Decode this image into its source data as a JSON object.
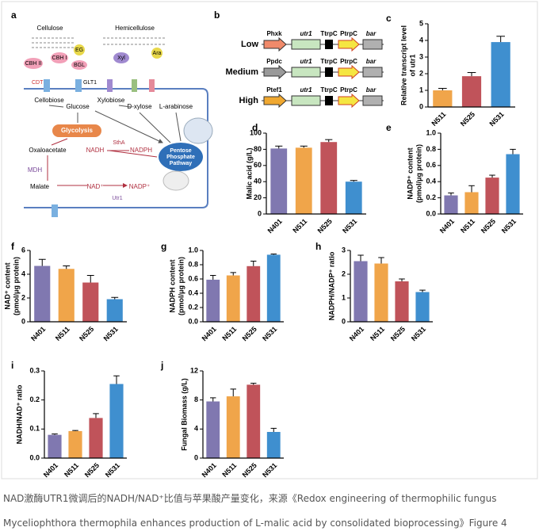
{
  "panel_a": {
    "letter": "a",
    "labels": {
      "cellulose": "Cellulose",
      "hemicellulose": "Hemicellulose",
      "cbh2": "CBH II",
      "cbh1": "CBH I",
      "eg": "EG",
      "bgl": "BGL",
      "xyl": "Xyl",
      "ara": "Ara",
      "cdt": "CDT",
      "glt1": "GLT1",
      "cellobiose": "Cellobiose",
      "glucose": "Glucose",
      "xylobiose": "Xylobiose",
      "dxylose": "D-xylose",
      "larabinose": "L-arabinose",
      "glycolysis": "Glycolysis",
      "oxaloacetate": "Oxaloacetate",
      "nadh": "NADH",
      "stha": "SthA",
      "nadph": "NADPH",
      "ppp1": "Pentose",
      "ppp2": "Phosphate",
      "ppp3": "Pathway",
      "mdh": "MDH",
      "malate": "Malate",
      "nad": "NAD⁺",
      "nadp": "NADP⁺",
      "utr1": "Utr1"
    }
  },
  "panel_b": {
    "letter": "b",
    "rows": [
      {
        "level": "Low",
        "parts": [
          "Phxk",
          "utr1",
          "TtrpC",
          "PtrpC",
          "bar"
        ]
      },
      {
        "level": "Medium",
        "parts": [
          "Ppdc",
          "utr1",
          "TtrpC",
          "PtrpC",
          "bar"
        ]
      },
      {
        "level": "High",
        "parts": [
          "Ptef1",
          "utr1",
          "TtrpC",
          "PtrpC",
          "bar"
        ]
      }
    ]
  },
  "chart_data": [
    {
      "type": "bar",
      "letter": "c",
      "ylabel": [
        "Relative transcript level",
        "of utr1"
      ],
      "categories": [
        "N511",
        "N525",
        "N531"
      ],
      "values": [
        1.0,
        1.85,
        3.9
      ],
      "errors": [
        0.12,
        0.22,
        0.35
      ],
      "colors": [
        "#f0a54a",
        "#c0535a",
        "#3f8fcf"
      ],
      "ylim": [
        0,
        5
      ],
      "yticks": [
        0,
        1,
        2,
        3,
        4,
        5
      ]
    },
    {
      "type": "bar",
      "letter": "d",
      "ylabel": [
        "Malic acid (g/L)"
      ],
      "categories": [
        "N401",
        "N511",
        "N525",
        "N531"
      ],
      "values": [
        81,
        82,
        89,
        40
      ],
      "errors": [
        3,
        2,
        3,
        1.5
      ],
      "colors": [
        "#8078b0",
        "#f0a54a",
        "#c0535a",
        "#3f8fcf"
      ],
      "ylim": [
        0,
        100
      ],
      "yticks": [
        0,
        20,
        40,
        60,
        80,
        100
      ]
    },
    {
      "type": "bar",
      "letter": "e",
      "ylabel": [
        "NADP⁺ content",
        "(pmol/μg protein)"
      ],
      "categories": [
        "N401",
        "N511",
        "N525",
        "N531"
      ],
      "values": [
        0.23,
        0.27,
        0.45,
        0.74
      ],
      "errors": [
        0.03,
        0.08,
        0.03,
        0.06
      ],
      "colors": [
        "#8078b0",
        "#f0a54a",
        "#c0535a",
        "#3f8fcf"
      ],
      "ylim": [
        0,
        1
      ],
      "yticks": [
        {
          "value": 0,
          "label": "0.0"
        },
        0.2,
        0.4,
        0.6,
        0.8,
        {
          "value": 1,
          "label": "1.0"
        }
      ]
    },
    {
      "type": "bar",
      "letter": "f",
      "ylabel": [
        "NAD⁺ content",
        "(pmol/μg protein)"
      ],
      "categories": [
        "N401",
        "N511",
        "N525",
        "N531"
      ],
      "values": [
        4.7,
        4.45,
        3.3,
        1.9
      ],
      "errors": [
        0.55,
        0.25,
        0.6,
        0.15
      ],
      "colors": [
        "#8078b0",
        "#f0a54a",
        "#c0535a",
        "#3f8fcf"
      ],
      "ylim": [
        0,
        6
      ],
      "yticks": [
        0,
        2,
        4,
        6
      ]
    },
    {
      "type": "bar",
      "letter": "g",
      "ylabel": [
        "NADPH content",
        "(pmol/μg protein)"
      ],
      "categories": [
        "N401",
        "N511",
        "N525",
        "N531"
      ],
      "values": [
        0.59,
        0.65,
        0.78,
        0.94
      ],
      "errors": [
        0.06,
        0.04,
        0.07,
        0.01
      ],
      "colors": [
        "#8078b0",
        "#f0a54a",
        "#c0535a",
        "#3f8fcf"
      ],
      "ylim": [
        0,
        1
      ],
      "yticks": [
        {
          "value": 0,
          "label": "0.0"
        },
        0.2,
        0.4,
        0.6,
        0.8,
        {
          "value": 1,
          "label": "1.0"
        }
      ]
    },
    {
      "type": "bar",
      "letter": "h",
      "ylabel": [
        "NADPH/NADP⁺ ratio"
      ],
      "categories": [
        "N401",
        "N511",
        "N525",
        "N531"
      ],
      "values": [
        2.55,
        2.45,
        1.7,
        1.25
      ],
      "errors": [
        0.25,
        0.25,
        0.1,
        0.08
      ],
      "colors": [
        "#8078b0",
        "#f0a54a",
        "#c0535a",
        "#3f8fcf"
      ],
      "ylim": [
        0,
        3
      ],
      "yticks": [
        0,
        1,
        2,
        3
      ]
    },
    {
      "type": "bar",
      "letter": "i",
      "ylabel": [
        "NADH/NAD⁺ ratio"
      ],
      "categories": [
        "N401",
        "N511",
        "N525",
        "N531"
      ],
      "values": [
        0.08,
        0.093,
        0.138,
        0.255
      ],
      "errors": [
        0.003,
        0.002,
        0.015,
        0.028
      ],
      "colors": [
        "#8078b0",
        "#f0a54a",
        "#c0535a",
        "#3f8fcf"
      ],
      "ylim": [
        0,
        0.3
      ],
      "yticks": [
        {
          "value": 0,
          "label": "0.0"
        },
        0.1,
        0.2,
        0.3
      ]
    },
    {
      "type": "bar",
      "letter": "j",
      "ylabel": [
        "Fungal Biomass (g/L)"
      ],
      "categories": [
        "N401",
        "N511",
        "N525",
        "N531"
      ],
      "values": [
        7.8,
        8.5,
        10.1,
        3.6
      ],
      "errors": [
        0.5,
        1.0,
        0.2,
        0.5
      ],
      "colors": [
        "#8078b0",
        "#f0a54a",
        "#c0535a",
        "#3f8fcf"
      ],
      "ylim": [
        0,
        12
      ],
      "yticks": [
        0,
        4,
        8,
        12
      ]
    }
  ],
  "caption": [
    "NAD激酶UTR1微调后的NADH/NAD⁺比值与苹果酸产量变化，来源《Redox engineering of thermophilic fungus",
    "Myceliophthora thermophila enhances production of L-malic acid by consolidated bioprocessing》Figure 4"
  ]
}
